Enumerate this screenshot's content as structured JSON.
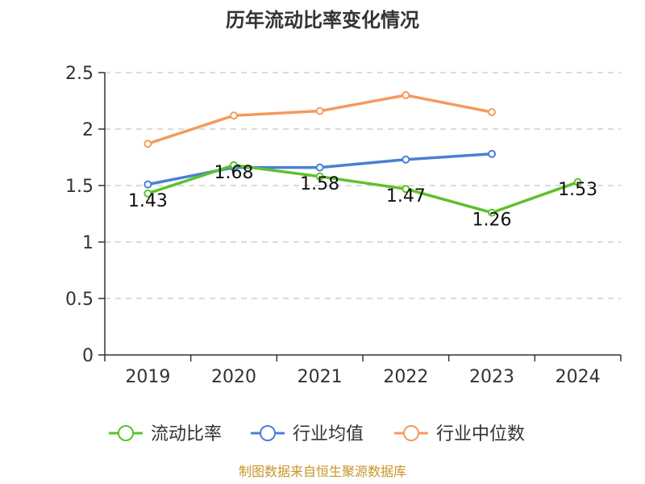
{
  "chart_data": {
    "type": "line",
    "title": "历年流动比率变化情况",
    "categories": [
      "2019",
      "2020",
      "2021",
      "2022",
      "2023",
      "2024"
    ],
    "ylim": [
      0,
      2.5
    ],
    "yticks": [
      "0",
      "0.5",
      "1",
      "1.5",
      "2",
      "2.5"
    ],
    "grid": true,
    "legend_position": "bottom",
    "series": [
      {
        "name": "流动比率",
        "color": "#5cc22a",
        "values": [
          1.43,
          1.68,
          1.58,
          1.47,
          1.26,
          1.53
        ],
        "labels": [
          "1.43",
          "1.68",
          "1.58",
          "1.47",
          "1.26",
          "1.53"
        ]
      },
      {
        "name": "行业均值",
        "color": "#4a7fd6",
        "values": [
          1.51,
          1.66,
          1.66,
          1.73,
          1.78,
          null
        ]
      },
      {
        "name": "行业中位数",
        "color": "#f59a5e",
        "values": [
          1.87,
          2.12,
          2.16,
          2.3,
          2.15,
          null
        ]
      }
    ]
  },
  "footer": {
    "source": "制图数据来自恒生聚源数据库"
  }
}
